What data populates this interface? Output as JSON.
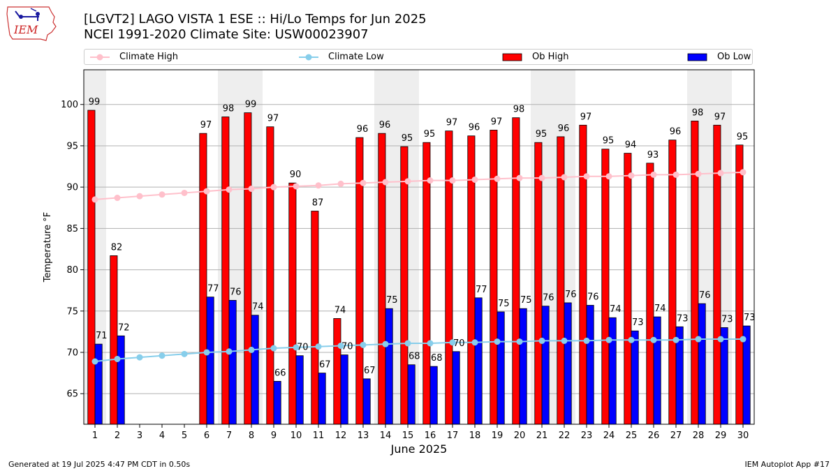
{
  "header": {
    "title_line1": "[LGVT2] LAGO VISTA 1 ESE :: Hi/Lo Temps for Jun 2025",
    "title_line2": "NCEI 1991-2020 Climate Site: USW00023907",
    "logo_text": "IEM"
  },
  "legend": {
    "position": "top",
    "items": [
      {
        "label": "Climate High",
        "kind": "line-marker",
        "color": "#ffc0cb"
      },
      {
        "label": "Climate Low",
        "kind": "line-marker",
        "color": "#87ceeb"
      },
      {
        "label": "Ob High",
        "kind": "bar",
        "color": "#ff0000"
      },
      {
        "label": "Ob Low",
        "kind": "bar",
        "color": "#0000ff"
      }
    ]
  },
  "footer": {
    "left": "Generated at 19 Jul 2025 4:47 PM CDT in 0.50s",
    "right": "IEM Autoplot App #17"
  },
  "chart_data": {
    "type": "bar",
    "title": "[LGVT2] LAGO VISTA 1 ESE :: Hi/Lo Temps for Jun 2025",
    "subtitle": "NCEI 1991-2020 Climate Site: USW00023907",
    "xlabel": "June 2025",
    "ylabel": "Temperature °F",
    "ylim": [
      61.3,
      104.2
    ],
    "yticks": [
      65,
      70,
      75,
      80,
      85,
      90,
      95,
      100
    ],
    "grid": true,
    "weekend_shading_days": [
      1,
      7,
      8,
      14,
      15,
      21,
      22,
      28,
      29
    ],
    "categories": [
      "1",
      "2",
      "3",
      "4",
      "5",
      "6",
      "7",
      "8",
      "9",
      "10",
      "11",
      "12",
      "13",
      "14",
      "15",
      "16",
      "17",
      "18",
      "19",
      "20",
      "21",
      "22",
      "23",
      "24",
      "25",
      "26",
      "27",
      "28",
      "29",
      "30"
    ],
    "series": [
      {
        "name": "Ob High",
        "type": "bar",
        "color": "#ff0000",
        "values": [
          99.3,
          81.7,
          null,
          null,
          null,
          96.5,
          98.5,
          99.0,
          97.3,
          90.5,
          87.1,
          74.1,
          96.0,
          96.5,
          94.9,
          95.4,
          96.8,
          96.2,
          96.9,
          98.4,
          95.4,
          96.1,
          97.5,
          94.6,
          94.1,
          92.9,
          95.7,
          98.0,
          97.5,
          95.1
        ],
        "labels": [
          "99",
          "82",
          "",
          "",
          "",
          "97",
          "98",
          "99",
          "97",
          "90",
          "87",
          "74",
          "96",
          "96",
          "95",
          "95",
          "97",
          "96",
          "97",
          "98",
          "95",
          "96",
          "97",
          "95",
          "94",
          "93",
          "96",
          "98",
          "97",
          "95"
        ]
      },
      {
        "name": "Ob Low",
        "type": "bar",
        "color": "#0000ff",
        "values": [
          71.0,
          72.0,
          null,
          null,
          null,
          76.7,
          76.3,
          74.5,
          66.5,
          69.6,
          67.5,
          69.7,
          66.8,
          75.3,
          68.5,
          68.3,
          70.1,
          76.6,
          74.9,
          75.3,
          75.6,
          76.0,
          75.7,
          74.2,
          72.6,
          74.3,
          73.1,
          75.9,
          73.0,
          73.2
        ],
        "labels": [
          "71",
          "72",
          "",
          "",
          "",
          "77",
          "76",
          "74",
          "66",
          "70",
          "67",
          "70",
          "67",
          "75",
          "68",
          "68",
          "70",
          "77",
          "75",
          "75",
          "76",
          "76",
          "76",
          "74",
          "73",
          "74",
          "73",
          "76",
          "73",
          "73"
        ]
      },
      {
        "name": "Climate High",
        "type": "line",
        "color": "#ffc0cb",
        "values": [
          88.5,
          88.7,
          88.9,
          89.1,
          89.3,
          89.5,
          89.7,
          89.8,
          90.0,
          90.1,
          90.2,
          90.4,
          90.5,
          90.6,
          90.7,
          90.8,
          90.8,
          90.9,
          91.0,
          91.1,
          91.1,
          91.2,
          91.3,
          91.3,
          91.4,
          91.5,
          91.5,
          91.6,
          91.7,
          91.8
        ]
      },
      {
        "name": "Climate Low",
        "type": "line",
        "color": "#87ceeb",
        "values": [
          68.9,
          69.2,
          69.4,
          69.6,
          69.8,
          70.0,
          70.1,
          70.3,
          70.5,
          70.6,
          70.7,
          70.8,
          70.9,
          71.0,
          71.1,
          71.1,
          71.2,
          71.2,
          71.3,
          71.3,
          71.4,
          71.4,
          71.4,
          71.5,
          71.5,
          71.5,
          71.5,
          71.6,
          71.6,
          71.6
        ]
      }
    ]
  }
}
